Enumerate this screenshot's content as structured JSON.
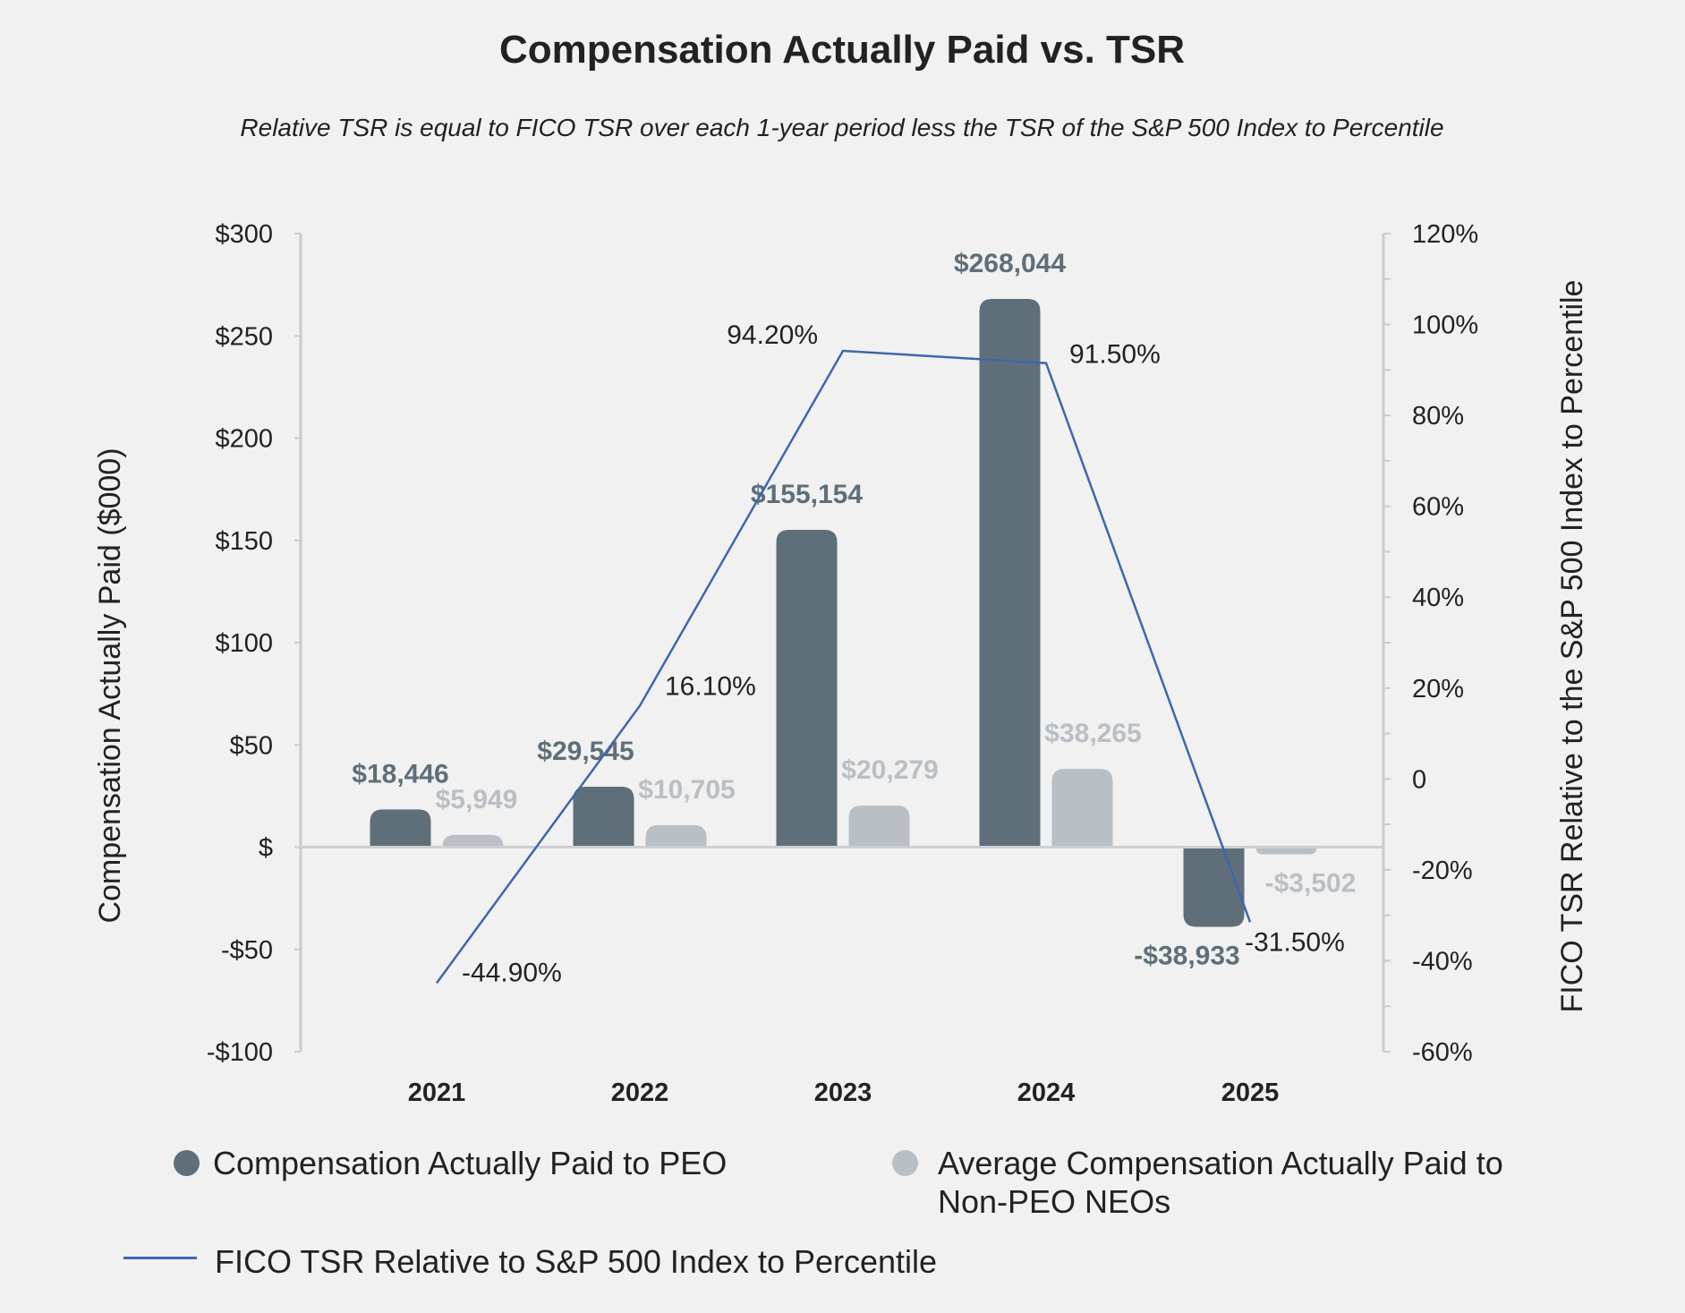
{
  "chart_data": {
    "type": "bar",
    "title": "Compensation Actually Paid vs. TSR",
    "subtitle": "Relative TSR is equal to FICO TSR over each 1-year period less the TSR of the S&P 500 Index to Percentile",
    "categories": [
      "2021",
      "2022",
      "2023",
      "2024",
      "2025"
    ],
    "ylabel": "Compensation Actually Paid ($000)",
    "y2label": "FICO TSR Relative to the S&P 500 Index to Percentile",
    "ylim": [
      -100,
      300
    ],
    "y_ticks": [
      "$300",
      "$250",
      "$200",
      "$150",
      "$100",
      "$50",
      "$",
      "-$50",
      "-$100"
    ],
    "y_tick_values": [
      300,
      250,
      200,
      150,
      100,
      50,
      0,
      -50,
      -100
    ],
    "y2lim": [
      -60,
      120
    ],
    "y2_ticks": [
      "120%",
      "100%",
      "80%",
      "60%",
      "40%",
      "20%",
      "0",
      "-20%",
      "-40%",
      "-60%"
    ],
    "y2_tick_values": [
      120,
      100,
      80,
      60,
      40,
      20,
      0,
      -20,
      -40,
      -60
    ],
    "series": [
      {
        "name": "Compensation Actually Paid to PEO",
        "kind": "bar",
        "axis": "left",
        "color": "#5f6f79",
        "label_color": "#5f6f79",
        "values": [
          18.446,
          29.545,
          155.154,
          268.044,
          -38.933
        ],
        "labels": [
          "$18,446",
          "$29,545",
          "$155,154",
          "$268,044",
          "-$38,933"
        ]
      },
      {
        "name": "Average Compensation Actually Paid to Non-PEO NEOs",
        "kind": "bar",
        "axis": "left",
        "color": "#b9bfc5",
        "label_color": "#b9bfc5",
        "values": [
          5.949,
          10.705,
          20.279,
          38.265,
          -3.502
        ],
        "labels": [
          "$5,949",
          "$10,705",
          "$20,279",
          "$38,265",
          "-$3,502"
        ]
      },
      {
        "name": "FICO TSR Relative to S&P 500 Index to Percentile",
        "kind": "line",
        "axis": "right",
        "color": "#3e66ae",
        "values": [
          -44.9,
          16.1,
          94.2,
          91.5,
          -31.5
        ],
        "labels": [
          "-44.90%",
          "16.10%",
          "94.20%",
          "91.50%",
          "-31.50%"
        ]
      }
    ],
    "legend": {
      "peo": "Compensation Actually Paid to PEO",
      "neo_line1": "Average Compensation Actually Paid to",
      "neo_line2": "Non-PEO NEOs",
      "tsr": "FICO TSR Relative to S&P 500 Index to Percentile"
    }
  }
}
